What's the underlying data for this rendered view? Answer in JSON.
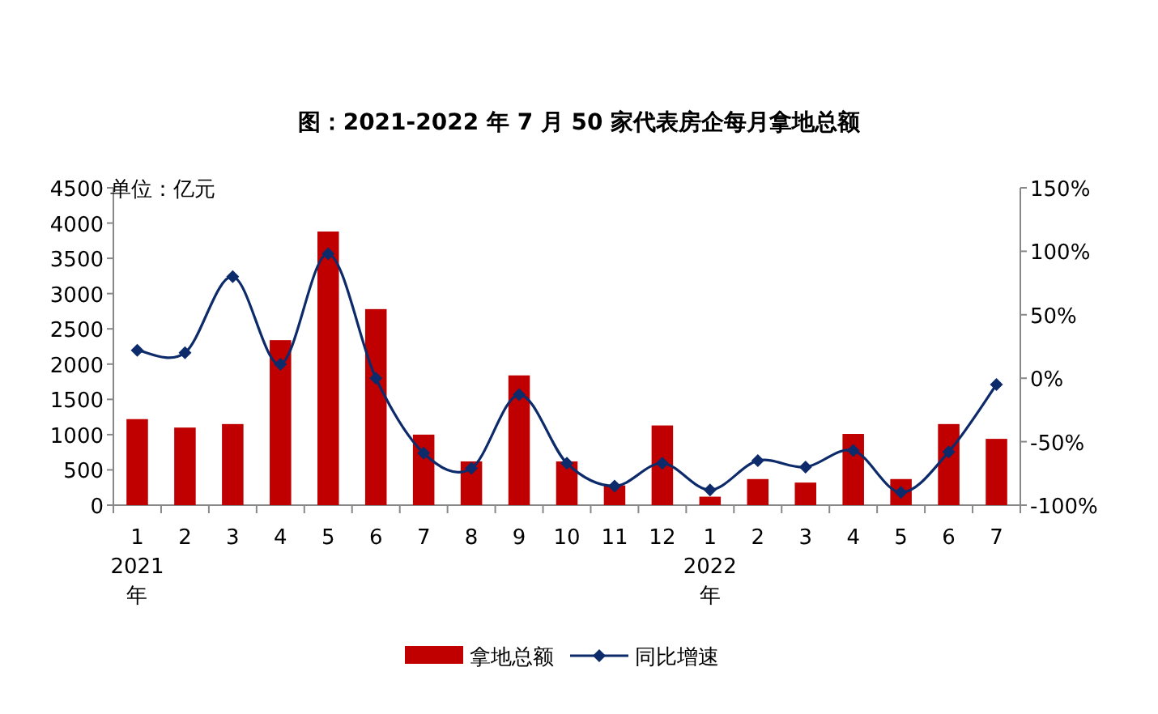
{
  "chart_data": {
    "type": "bar",
    "title": "图：2021-2022 年 7 月 50 家代表房企每月拿地总额",
    "ylabel": "单位：亿元",
    "categories": [
      "1\n2021\n年",
      "2",
      "3",
      "4",
      "5",
      "6",
      "7",
      "8",
      "9",
      "10",
      "11",
      "12",
      "1\n2022\n年",
      "2",
      "3",
      "4",
      "5",
      "6",
      "7"
    ],
    "series": [
      {
        "name": "拿地总额",
        "color": "#c00000",
        "values": [
          1220,
          1100,
          1150,
          2340,
          3880,
          2780,
          1000,
          620,
          1840,
          620,
          280,
          1130,
          120,
          370,
          320,
          1010,
          370,
          1150,
          940
        ]
      },
      {
        "name": "同比增速",
        "type": "line",
        "axis": "y2",
        "color": "#0d2b6b",
        "marker": "diamond",
        "values": [
          22,
          20,
          80,
          11,
          98,
          0,
          -59,
          -71,
          -13,
          -67,
          -85,
          -67,
          -88,
          -65,
          -70,
          -57,
          -90,
          -58,
          -5
        ]
      }
    ],
    "ylim": [
      0,
      4500
    ],
    "yticks": [
      0,
      500,
      1000,
      1500,
      2000,
      2500,
      3000,
      3500,
      4000,
      4500
    ],
    "y2lim": [
      -100,
      150
    ],
    "y2ticks": [
      {
        "value": -100,
        "label": "-100%"
      },
      {
        "value": -50,
        "label": "-50%"
      },
      {
        "value": 0,
        "label": "0%"
      },
      {
        "value": 50,
        "label": "50%"
      },
      {
        "value": 100,
        "label": "100%"
      },
      {
        "value": 150,
        "label": "150%"
      }
    ],
    "legend": "bottom"
  }
}
